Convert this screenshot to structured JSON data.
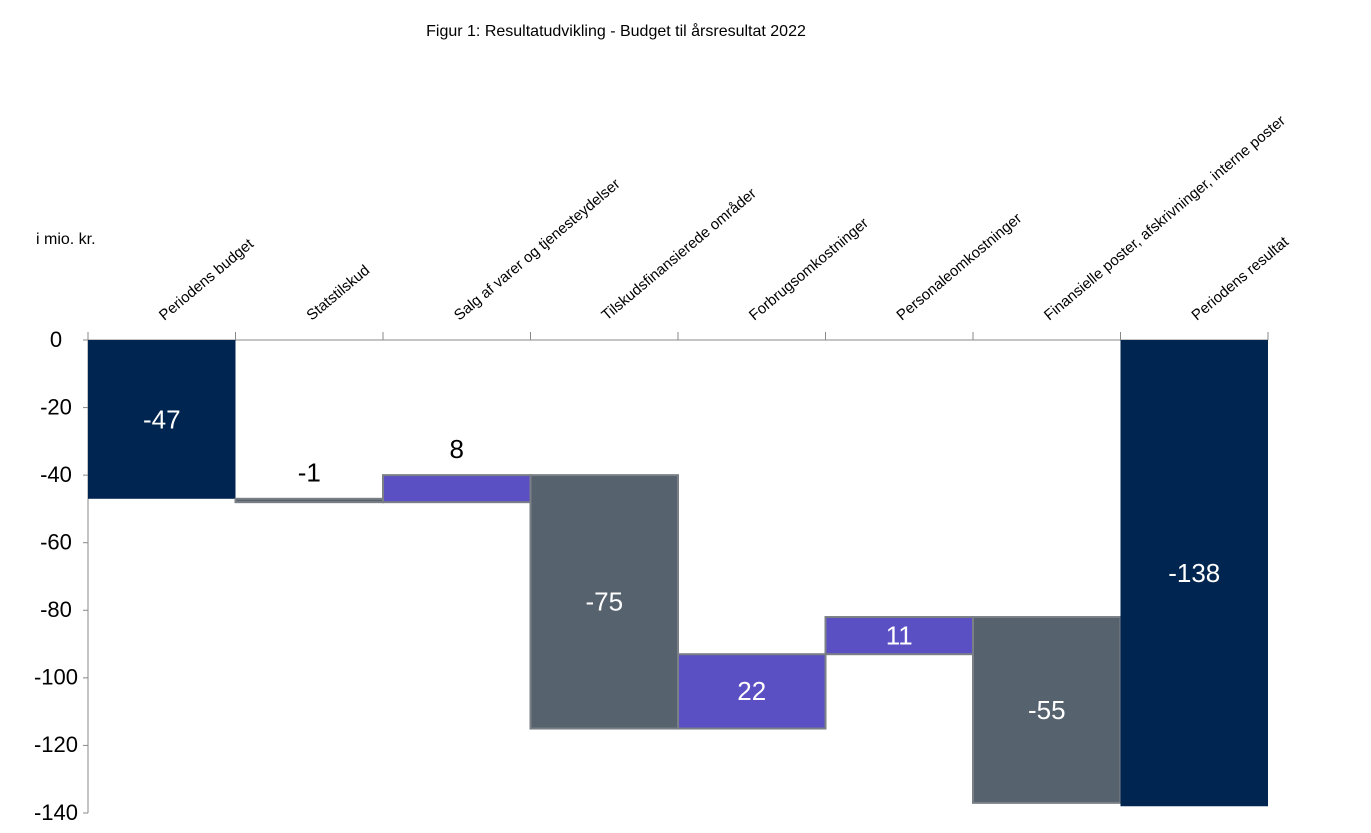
{
  "chart_data": {
    "type": "waterfall",
    "title": "Figur 1: Resultatudvikling - Budget til årsresultat 2022",
    "y_label": "i mio. kr.",
    "categories": [
      "Periodens budget",
      "Statstilskud",
      "Salg af varer og tjenesteydelser",
      "Tilskudsfinansierede områder",
      "Forbrugsomkostninger",
      "Personaleomkostninger",
      "Finansielle poster, afskrivninger, interne poster",
      "Periodens resultat"
    ],
    "values": [
      -47,
      -1,
      8,
      -75,
      22,
      11,
      -55,
      -138
    ],
    "measures": [
      "absolute",
      "relative",
      "relative",
      "relative",
      "relative",
      "relative",
      "relative",
      "absolute"
    ],
    "colors": {
      "total": "#002550",
      "increase": "#5b4fc4",
      "decrease": "#56626e"
    },
    "ylim": [
      -140,
      0
    ],
    "yticks": [
      0,
      -20,
      -40,
      -60,
      -80,
      -100,
      -120,
      -140
    ]
  }
}
